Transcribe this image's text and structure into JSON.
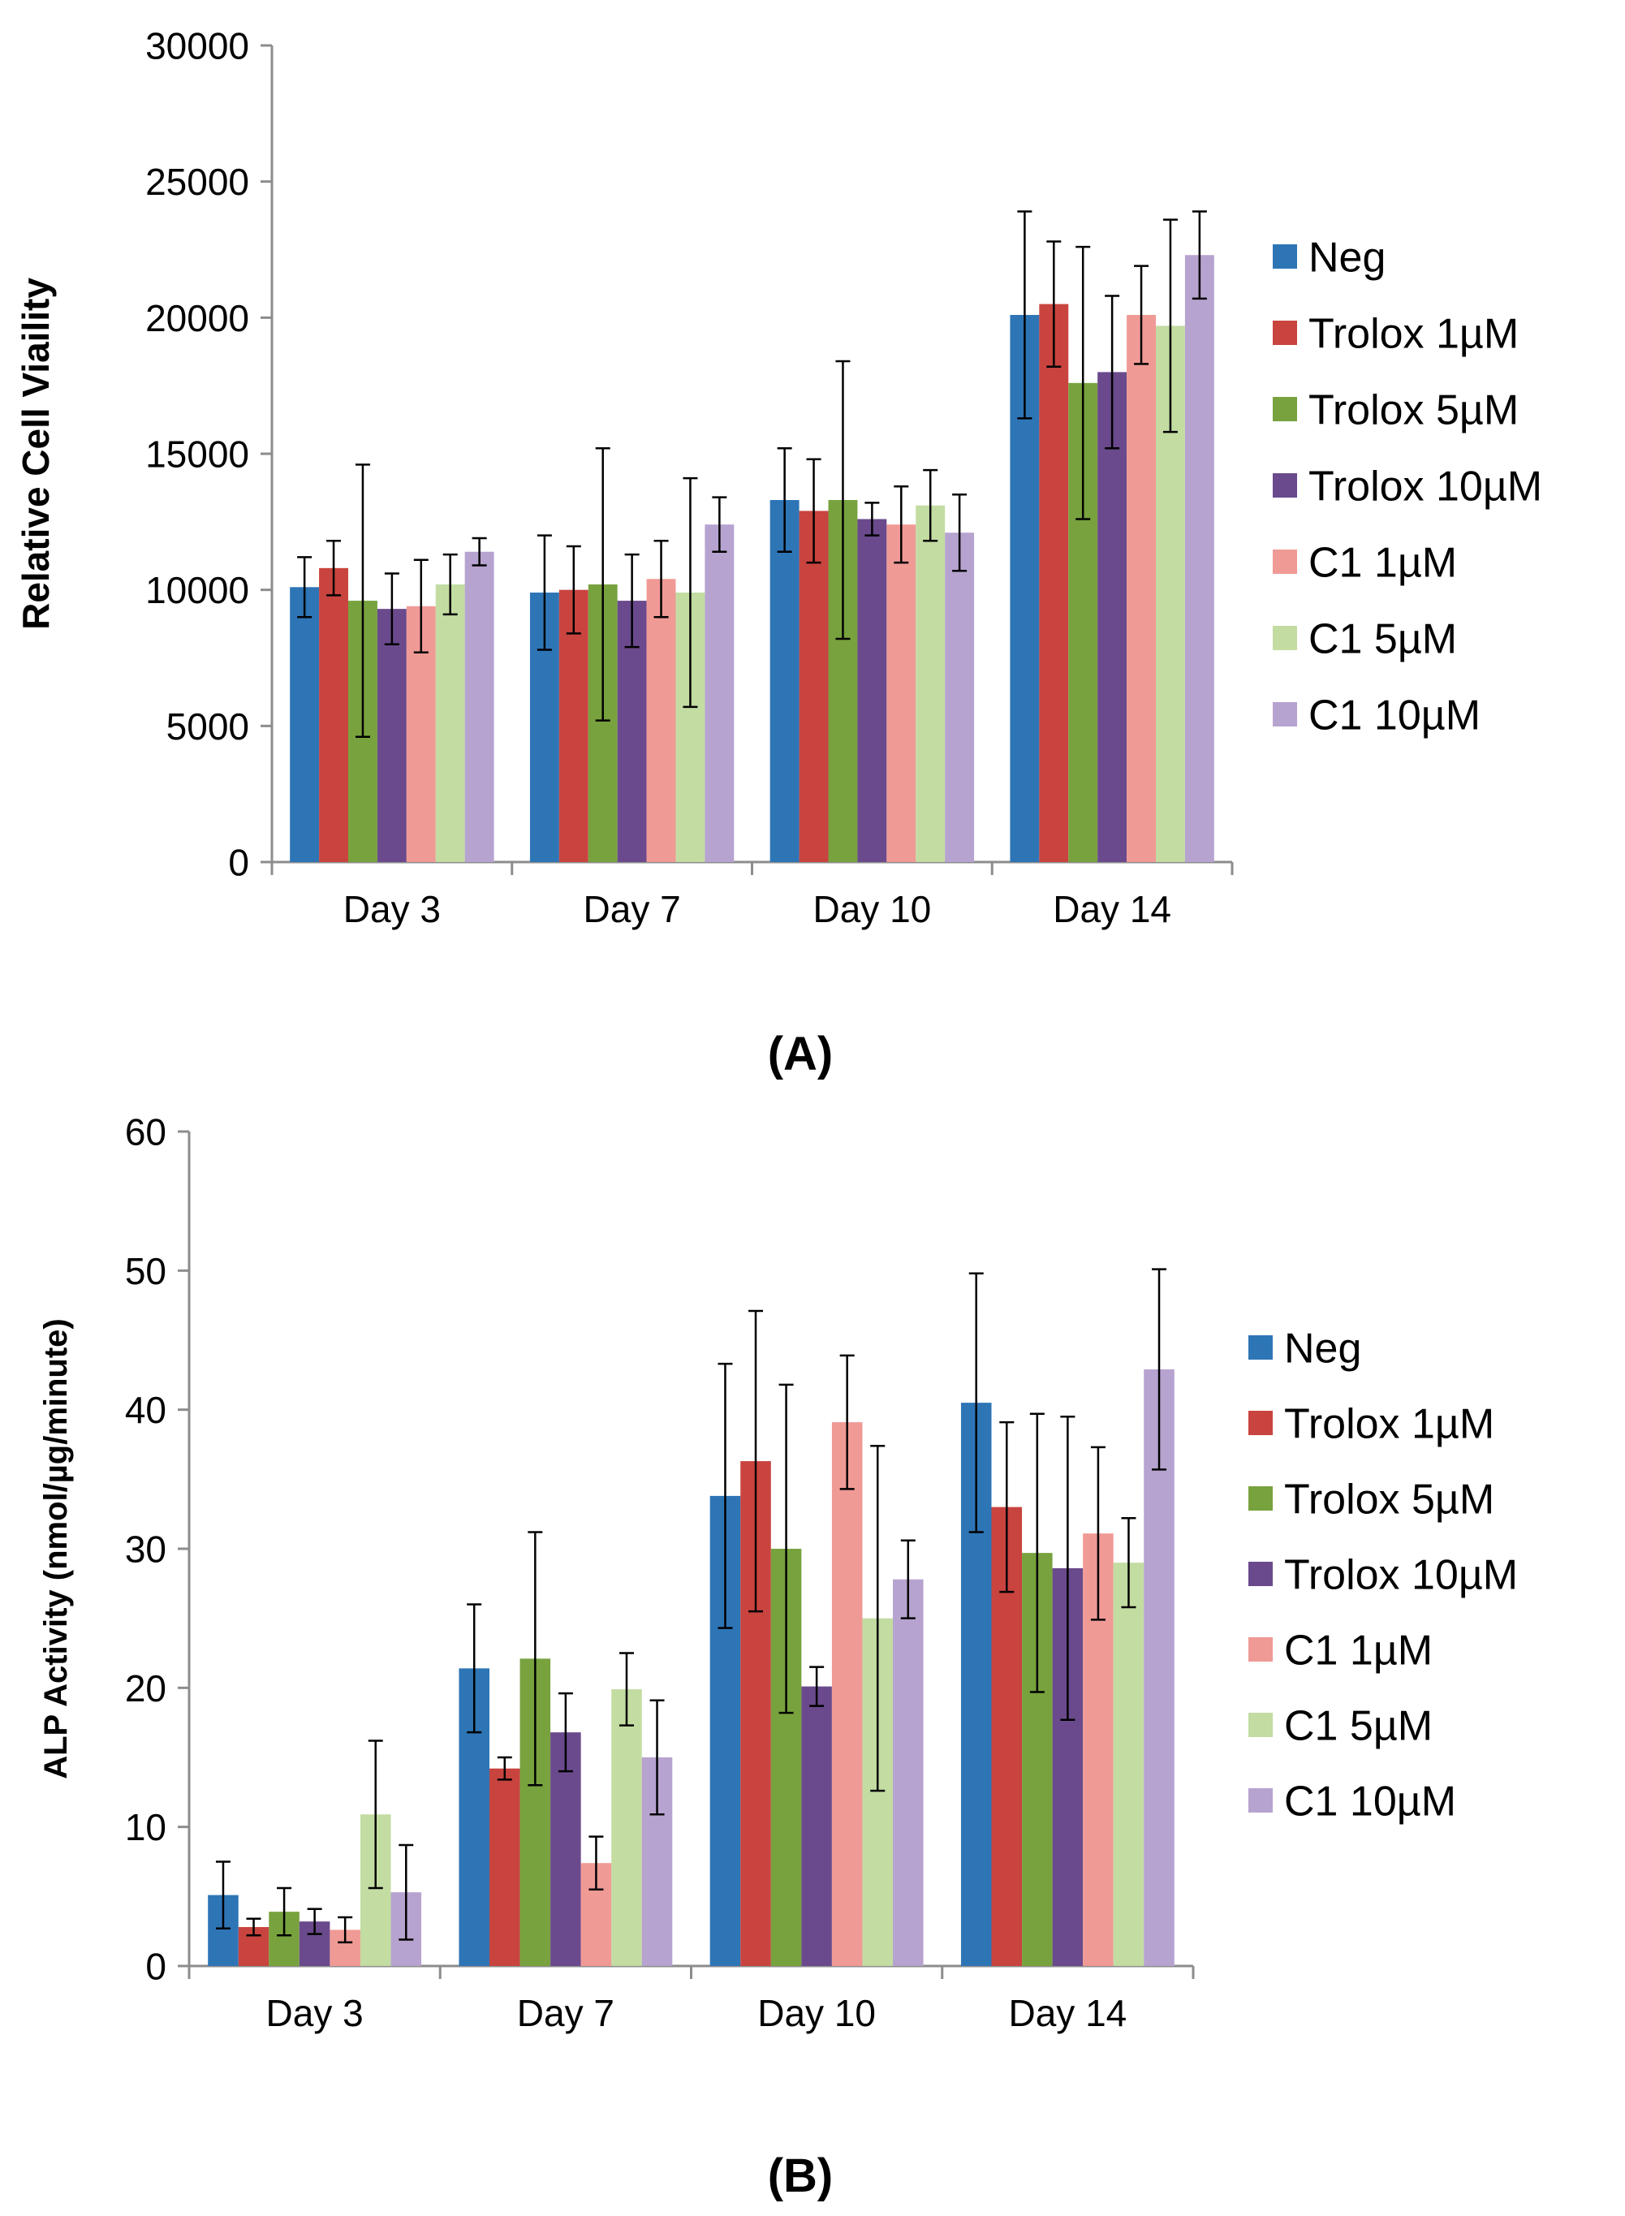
{
  "figure": {
    "panel_labels": [
      "(A)",
      "(B)"
    ]
  },
  "colors": {
    "Neg": "#2e75b6",
    "Trolox 1µM": "#c9443f",
    "Trolox 5µM": "#78a23e",
    "Trolox 10µM": "#6a4a8c",
    "C1 1µM": "#f09a96",
    "C1 5µM": "#c3dca2",
    "C1 10µM": "#b7a3cf",
    "axis": "#8c8c8c",
    "text": "#000000"
  },
  "chart_data": [
    {
      "type": "bar",
      "panel": "(A)",
      "title": "",
      "xlabel": "",
      "ylabel": "Relative Cell Viaility",
      "ylim": [
        0,
        30000
      ],
      "yticks": [
        0,
        5000,
        10000,
        15000,
        20000,
        25000,
        30000
      ],
      "categories": [
        "Day 3",
        "Day 7",
        "Day 10",
        "Day 14"
      ],
      "legend_position": "right",
      "series": [
        {
          "name": "Neg",
          "values": [
            10100,
            9900,
            13300,
            20100
          ],
          "errors": [
            1100,
            2100,
            1900,
            3800
          ]
        },
        {
          "name": "Trolox 1µM",
          "values": [
            10800,
            10000,
            12900,
            20500
          ],
          "errors": [
            1000,
            1600,
            1900,
            2300
          ]
        },
        {
          "name": "Trolox 5µM",
          "values": [
            9600,
            10200,
            13300,
            17600
          ],
          "errors": [
            5000,
            5000,
            5100,
            5000
          ]
        },
        {
          "name": "Trolox 10µM",
          "values": [
            9300,
            9600,
            12600,
            18000
          ],
          "errors": [
            1300,
            1700,
            600,
            2800
          ]
        },
        {
          "name": "C1 1µM",
          "values": [
            9400,
            10400,
            12400,
            20100
          ],
          "errors": [
            1700,
            1400,
            1400,
            1800
          ]
        },
        {
          "name": "C1 5µM",
          "values": [
            10200,
            9900,
            13100,
            19700
          ],
          "errors": [
            1100,
            4200,
            1300,
            3900
          ]
        },
        {
          "name": "C1 10µM",
          "values": [
            11400,
            12400,
            12100,
            22300
          ],
          "errors": [
            500,
            1000,
            1400,
            1600
          ]
        }
      ]
    },
    {
      "type": "bar",
      "panel": "(B)",
      "title": "",
      "xlabel": "",
      "ylabel": "ALP Activity (nmol/µg/minute)",
      "ylim": [
        0,
        60
      ],
      "yticks": [
        0,
        10,
        20,
        30,
        40,
        50,
        60
      ],
      "categories": [
        "Day 3",
        "Day 7",
        "Day 10",
        "Day 14"
      ],
      "legend_position": "right",
      "series": [
        {
          "name": "Neg",
          "values": [
            5.1,
            21.4,
            33.8,
            40.5
          ],
          "errors": [
            2.4,
            4.6,
            9.5,
            9.3
          ]
        },
        {
          "name": "Trolox 1µM",
          "values": [
            2.8,
            14.2,
            36.3,
            33.0
          ],
          "errors": [
            0.6,
            0.8,
            10.8,
            6.1
          ]
        },
        {
          "name": "Trolox 5µM",
          "values": [
            3.9,
            22.1,
            30.0,
            29.7
          ],
          "errors": [
            1.7,
            9.1,
            11.8,
            10.0
          ]
        },
        {
          "name": "Trolox 10µM",
          "values": [
            3.2,
            16.8,
            20.1,
            28.6
          ],
          "errors": [
            0.9,
            2.8,
            1.4,
            10.9
          ]
        },
        {
          "name": "C1 1µM",
          "values": [
            2.6,
            7.4,
            39.1,
            31.1
          ],
          "errors": [
            0.9,
            1.9,
            4.8,
            6.2
          ]
        },
        {
          "name": "C1 5µM",
          "values": [
            10.9,
            19.9,
            25.0,
            29.0
          ],
          "errors": [
            5.3,
            2.6,
            12.4,
            3.2
          ]
        },
        {
          "name": "C1 10µM",
          "values": [
            5.3,
            15.0,
            27.8,
            42.9
          ],
          "errors": [
            3.4,
            4.1,
            2.8,
            7.2
          ]
        }
      ]
    }
  ]
}
